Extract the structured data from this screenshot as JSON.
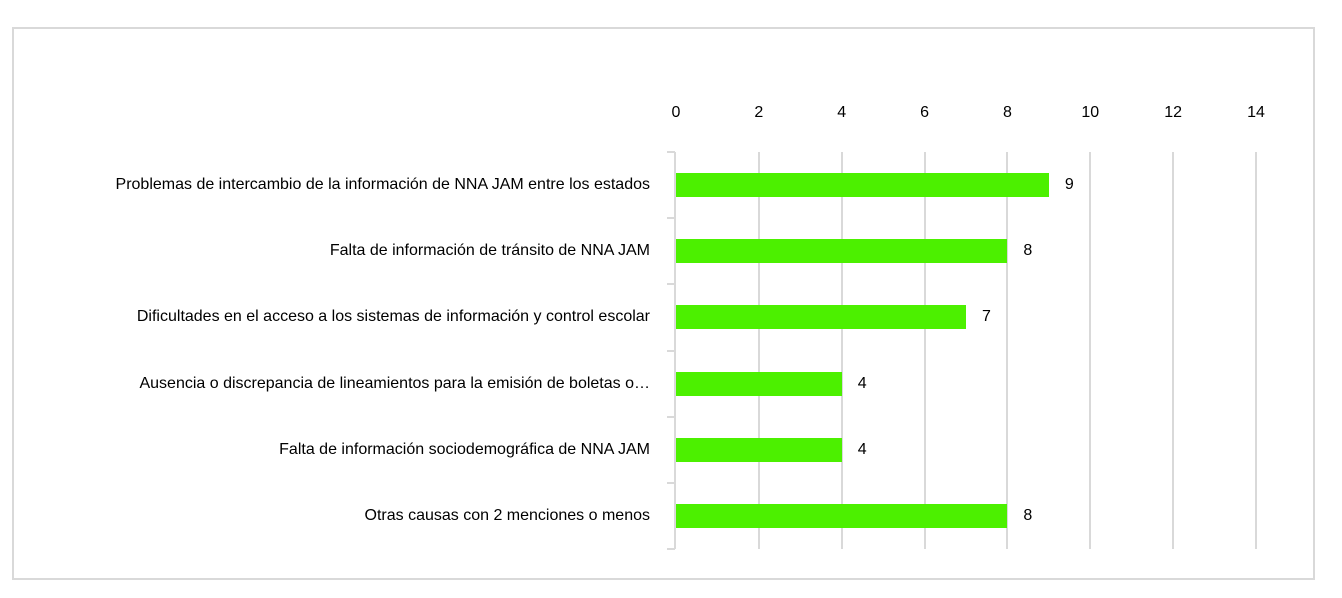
{
  "chart_data": {
    "type": "bar",
    "orientation": "horizontal",
    "title": "",
    "xlabel": "",
    "ylabel": "",
    "xlim": [
      0,
      14
    ],
    "x_ticks": [
      "0",
      "2",
      "4",
      "6",
      "8",
      "10",
      "12",
      "14"
    ],
    "x_axis_position": "top",
    "grid": true,
    "legend": null,
    "bar_color": "#4cf000",
    "categories": [
      "Problemas de intercambio de la información de NNA JAM entre los estados",
      "Falta de información de tránsito de NNA JAM",
      "Dificultades en el acceso a los sistemas de información y control escolar",
      "Ausencia o discrepancia de lineamientos para la emisión de boletas o…",
      "Falta de información sociodemográfica de NNA JAM",
      "Otras causas con 2 menciones o menos"
    ],
    "values": [
      9,
      8,
      7,
      4,
      4,
      8
    ],
    "value_labels": [
      "9",
      "8",
      "7",
      "4",
      "4",
      "8"
    ]
  }
}
